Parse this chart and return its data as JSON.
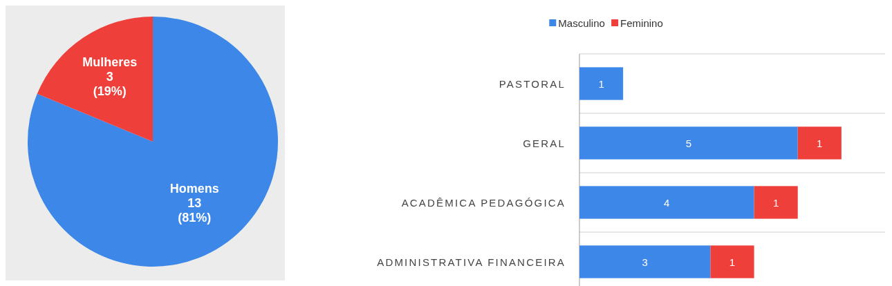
{
  "chart_data": [
    {
      "type": "pie",
      "categories": [
        "Homens",
        "Mulheres"
      ],
      "values": [
        13,
        3
      ],
      "colors": [
        "#3c87e8",
        "#ee3f3a"
      ],
      "value_labels": [
        "13 (81%)",
        "3 (19%)"
      ]
    },
    {
      "type": "bar",
      "orientation": "horizontal",
      "stacked": true,
      "categories": [
        "PASTORAL",
        "GERAL",
        "ACADÊMICA PEDAGÓGICA",
        "ADMINISTRATIVA FINANCEIRA"
      ],
      "series": [
        {
          "name": "Masculino",
          "color": "#3c87e8",
          "values": [
            1,
            5,
            4,
            3
          ]
        },
        {
          "name": "Feminino",
          "color": "#ee3f3a",
          "values": [
            null,
            1,
            1,
            1
          ]
        }
      ],
      "data_labels": true,
      "legend": "top",
      "grid": "y",
      "tick_labels": "y"
    }
  ]
}
